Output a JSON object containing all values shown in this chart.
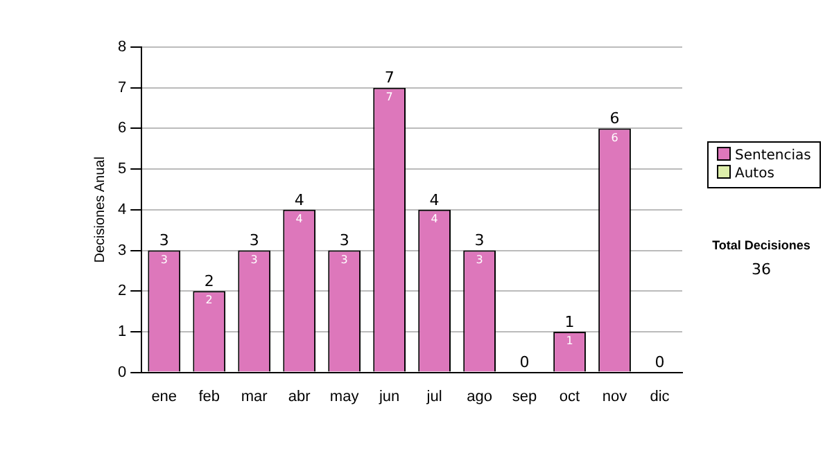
{
  "chart_data": {
    "type": "bar",
    "ylabel": "Decisiones Anual",
    "categories": [
      "ene",
      "feb",
      "mar",
      "abr",
      "may",
      "jun",
      "jul",
      "ago",
      "sep",
      "oct",
      "nov",
      "dic"
    ],
    "series": [
      {
        "name": "Sentencias",
        "color": "#dd77bb",
        "values": [
          3,
          2,
          3,
          4,
          3,
          7,
          4,
          3,
          0,
          1,
          6,
          0
        ],
        "value_labels": [
          "3",
          "2",
          "3",
          "4",
          "3",
          "7",
          "4",
          "3",
          null,
          "1",
          "6",
          null
        ]
      },
      {
        "name": "Autos",
        "color": "#ddeeaa",
        "values": [
          0,
          0,
          0,
          0,
          0,
          0,
          0,
          0,
          0,
          0,
          0,
          0
        ]
      }
    ],
    "stacked": true,
    "totals": [
      "3",
      "2",
      "3",
      "4",
      "3",
      "7",
      "4",
      "3",
      "0",
      "1",
      "6",
      "0"
    ],
    "ylim": [
      0,
      8
    ],
    "yticks": [
      0,
      1,
      2,
      3,
      4,
      5,
      6,
      7,
      8
    ],
    "grid": "y",
    "legend": "right",
    "annotations": [
      "Total Decisiones",
      "36"
    ]
  }
}
